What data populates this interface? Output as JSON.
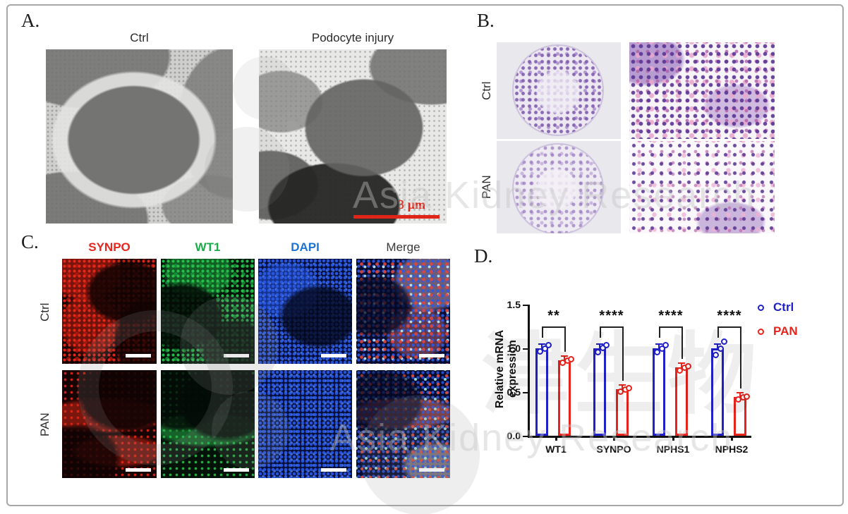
{
  "figure": {
    "panels": {
      "A": {
        "label": "A.",
        "col_headers": [
          "Ctrl",
          "Podocyte injury"
        ],
        "scale_bar_label": "3 μm",
        "scale_bar_color": "#e02418"
      },
      "B": {
        "label": "B.",
        "row_labels": [
          "Ctrl",
          "PAN"
        ]
      },
      "C": {
        "label": "C.",
        "col_headers": [
          {
            "text": "SYNPO",
            "color": "#e8251f"
          },
          {
            "text": "WT1",
            "color": "#1cab4a"
          },
          {
            "text": "DAPI",
            "color": "#1c74d2"
          },
          {
            "text": "Merge",
            "color": "#3a3a3a"
          }
        ],
        "row_labels": [
          "Ctrl",
          "PAN"
        ]
      },
      "D": {
        "label": "D."
      }
    },
    "watermark": {
      "line_mid": "Asia Kidney Research",
      "line_bottom": "Asia Kidney Research",
      "cjk": "津生物"
    }
  },
  "chart_data": {
    "type": "bar",
    "title": "",
    "xlabel": "",
    "ylabel": "Relative mRNA expression",
    "ylim": [
      0,
      1.5
    ],
    "yticks": [
      0,
      0.5,
      1,
      1.5
    ],
    "grid": false,
    "legend_position": "top-right",
    "categories": [
      "WT1",
      "SYNPO",
      "NPHS1",
      "NPHS2"
    ],
    "series": [
      {
        "name": "Ctrl",
        "color": "#2121cc",
        "values": [
          1.0,
          1.0,
          1.0,
          1.0
        ],
        "points": [
          [
            0.97,
            1.0,
            1.04
          ],
          [
            0.96,
            1.01,
            1.04
          ],
          [
            0.96,
            1.0,
            1.04
          ],
          [
            0.93,
            1.0,
            1.08
          ]
        ]
      },
      {
        "name": "PAN",
        "color": "#e8231c",
        "values": [
          0.86,
          0.53,
          0.78,
          0.44
        ],
        "points": [
          [
            0.84,
            0.86,
            0.88
          ],
          [
            0.51,
            0.53,
            0.55
          ],
          [
            0.75,
            0.78,
            0.8
          ],
          [
            0.42,
            0.44,
            0.45
          ]
        ]
      }
    ],
    "significance": [
      "**",
      "****",
      "****",
      "****"
    ]
  }
}
